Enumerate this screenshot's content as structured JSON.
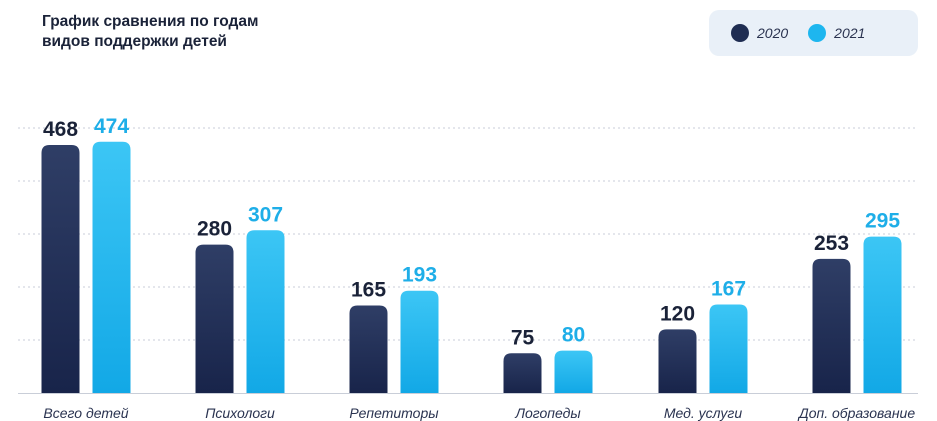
{
  "chart_data": {
    "type": "bar",
    "title_lines": [
      "График сравнения по годам",
      "видов поддержки детей"
    ],
    "categories": [
      "Всего детей",
      "Психологи",
      "Репетиторы",
      "Логопеды",
      "Мед. услуги",
      "Доп. образование"
    ],
    "series": [
      {
        "name": "2020",
        "values": [
          468,
          280,
          165,
          75,
          120,
          253
        ],
        "color": "#1f2d52"
      },
      {
        "name": "2021",
        "values": [
          474,
          307,
          193,
          80,
          167,
          295
        ],
        "color": "#1db6ef"
      }
    ],
    "ylim": [
      0,
      500
    ],
    "gridlines": [
      100,
      200,
      300,
      400,
      500
    ],
    "grid": true,
    "legend_position": "top-right",
    "label_colors": {
      "2020": "#1a2238",
      "2021": "#1eaee8"
    }
  }
}
